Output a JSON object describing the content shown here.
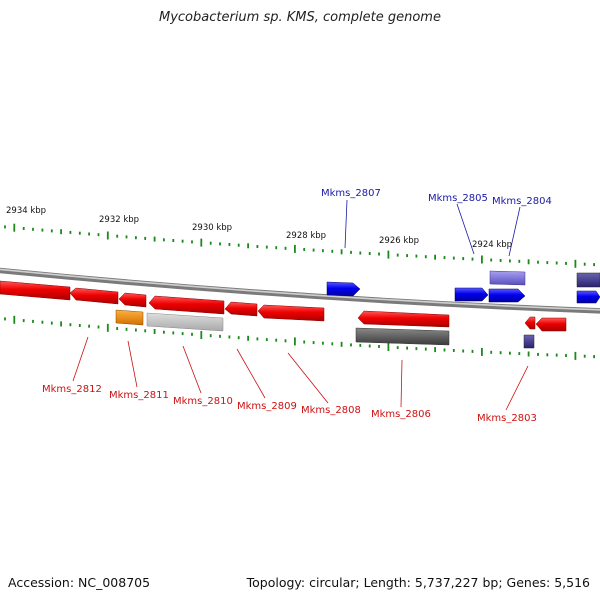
{
  "title": "Mycobacterium sp. KMS, complete genome",
  "footer": {
    "accession": "Accession: NC_008705",
    "summary": "Topology: circular; Length: 5,737,227 bp; Genes: 5,516"
  },
  "colors": {
    "forward_gene": "#0000ee",
    "forward_gene_label": "#1a1aa8",
    "reverse_gene": "#ee0000",
    "reverse_gene_label": "#cc1111",
    "rna": "#f08c00",
    "pseudo": "#bdbdbd",
    "misc": "#5a5a5a",
    "lavender": "#7a70d8",
    "tick": "#1a8a1a",
    "backbone": "#909090"
  },
  "scale": {
    "unit": "kbp",
    "labels": [
      {
        "value": 2934,
        "text": "2934 kbp"
      },
      {
        "value": 2932,
        "text": "2932 kbp"
      },
      {
        "value": 2930,
        "text": "2930 kbp"
      },
      {
        "value": 2928,
        "text": "2928 kbp"
      },
      {
        "value": 2926,
        "text": "2926 kbp"
      },
      {
        "value": 2924,
        "text": "2924 kbp"
      }
    ]
  },
  "gene_labels": {
    "top": [
      {
        "id": "Mkms_2807",
        "text": "Mkms_2807"
      },
      {
        "id": "Mkms_2805",
        "text": "Mkms_2805"
      },
      {
        "id": "Mkms_2804",
        "text": "Mkms_2804"
      }
    ],
    "bottom": [
      {
        "id": "Mkms_2812",
        "text": "Mkms_2812"
      },
      {
        "id": "Mkms_2811",
        "text": "Mkms_2811"
      },
      {
        "id": "Mkms_2810",
        "text": "Mkms_2810"
      },
      {
        "id": "Mkms_2809",
        "text": "Mkms_2809"
      },
      {
        "id": "Mkms_2808",
        "text": "Mkms_2808"
      },
      {
        "id": "Mkms_2806",
        "text": "Mkms_2806"
      },
      {
        "id": "Mkms_2803",
        "text": "Mkms_2803"
      }
    ]
  }
}
